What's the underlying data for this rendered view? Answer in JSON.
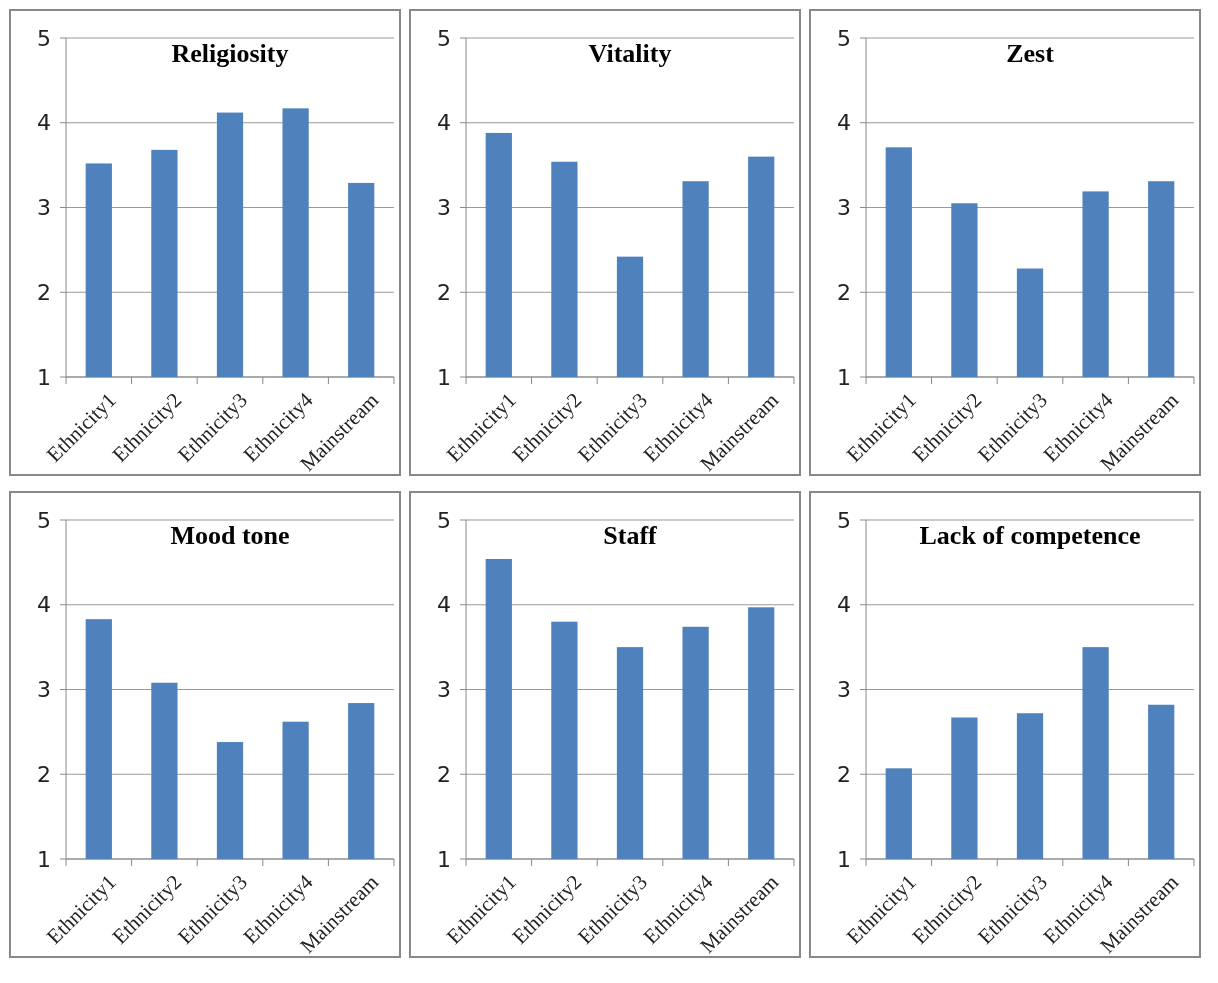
{
  "chart_data": [
    {
      "type": "bar",
      "title": "Religiosity",
      "categories": [
        "Ethnicity1",
        "Ethnicity2",
        "Ethnicity3",
        "Ethnicity4",
        "Mainstream"
      ],
      "values": [
        3.52,
        3.68,
        4.12,
        4.17,
        3.29
      ],
      "color": "#4f81bd",
      "ylim": [
        1,
        5
      ],
      "yticks": [
        1,
        2,
        3,
        4,
        5
      ],
      "grid": "y"
    },
    {
      "type": "bar",
      "title": "Vitality",
      "categories": [
        "Ethnicity1",
        "Ethnicity2",
        "Ethnicity3",
        "Ethnicity4",
        "Mainstream"
      ],
      "values": [
        3.88,
        3.54,
        2.42,
        3.31,
        3.6
      ],
      "color": "#4f81bd",
      "ylim": [
        1,
        5
      ],
      "yticks": [
        1,
        2,
        3,
        4,
        5
      ],
      "grid": "y"
    },
    {
      "type": "bar",
      "title": "Zest",
      "categories": [
        "Ethnicity1",
        "Ethnicity2",
        "Ethnicity3",
        "Ethnicity4",
        "Mainstream"
      ],
      "values": [
        3.71,
        3.05,
        2.28,
        3.19,
        3.31
      ],
      "color": "#4f81bd",
      "ylim": [
        1,
        5
      ],
      "yticks": [
        1,
        2,
        3,
        4,
        5
      ],
      "grid": "y"
    },
    {
      "type": "bar",
      "title": "Mood tone",
      "categories": [
        "Ethnicity1",
        "Ethnicity2",
        "Ethnicity3",
        "Ethnicity4",
        "Mainstream"
      ],
      "values": [
        3.83,
        3.08,
        2.38,
        2.62,
        2.84
      ],
      "color": "#4f81bd",
      "ylim": [
        1,
        5
      ],
      "yticks": [
        1,
        2,
        3,
        4,
        5
      ],
      "grid": "y"
    },
    {
      "type": "bar",
      "title": "Staff",
      "categories": [
        "Ethnicity1",
        "Ethnicity2",
        "Ethnicity3",
        "Ethnicity4",
        "Mainstream"
      ],
      "values": [
        4.54,
        3.8,
        3.5,
        3.74,
        3.97
      ],
      "color": "#4f81bd",
      "ylim": [
        1,
        5
      ],
      "yticks": [
        1,
        2,
        3,
        4,
        5
      ],
      "grid": "y"
    },
    {
      "type": "bar",
      "title": "Lack of competence",
      "categories": [
        "Ethnicity1",
        "Ethnicity2",
        "Ethnicity3",
        "Ethnicity4",
        "Mainstream"
      ],
      "values": [
        2.07,
        2.67,
        2.72,
        3.5,
        2.82
      ],
      "color": "#4f81bd",
      "ylim": [
        1,
        5
      ],
      "yticks": [
        1,
        2,
        3,
        4,
        5
      ],
      "grid": "y"
    }
  ]
}
